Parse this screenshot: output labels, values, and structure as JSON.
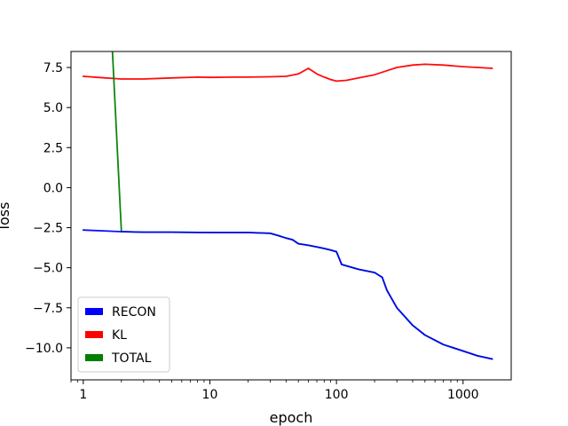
{
  "chart_data": {
    "type": "line",
    "title": "",
    "xlabel": "epoch",
    "ylabel": "loss",
    "xscale": "log",
    "xlim": [
      0.8,
      2400
    ],
    "ylim": [
      -12.0,
      8.5
    ],
    "xticks": [
      1,
      10,
      100,
      1000
    ],
    "xtick_labels": [
      "1",
      "10",
      "100",
      "1000"
    ],
    "yticks": [
      7.5,
      5.0,
      2.5,
      0.0,
      -2.5,
      -5.0,
      -7.5,
      -10.0
    ],
    "ytick_labels": [
      "7.5",
      "5.0",
      "2.5",
      "0.0",
      "−2.5",
      "−5.0",
      "−7.5",
      "−10.0"
    ],
    "grid": false,
    "legend_position": "lower-left",
    "legend": [
      {
        "label": "RECON",
        "color": "#0000ff"
      },
      {
        "label": "KL",
        "color": "#ff0000"
      },
      {
        "label": "TOTAL",
        "color": "#008000"
      }
    ],
    "series": [
      {
        "name": "KL",
        "color": "#ff0000",
        "x": [
          1,
          1.5,
          2,
          3,
          5,
          8,
          10,
          15,
          20,
          30,
          40,
          50,
          60,
          70,
          80,
          90,
          100,
          120,
          150,
          200,
          250,
          300,
          400,
          500,
          700,
          1000,
          1300,
          1700
        ],
        "values": [
          6.95,
          6.85,
          6.78,
          6.78,
          6.85,
          6.9,
          6.88,
          6.9,
          6.9,
          6.92,
          6.95,
          7.1,
          7.45,
          7.1,
          6.9,
          6.75,
          6.65,
          6.7,
          6.85,
          7.05,
          7.3,
          7.5,
          7.65,
          7.7,
          7.65,
          7.55,
          7.5,
          7.45
        ]
      },
      {
        "name": "TOTAL",
        "color": "#008000",
        "x": [
          1.7,
          2,
          3,
          5,
          10,
          20,
          30,
          35,
          40,
          45,
          50,
          60,
          70,
          80,
          90,
          100,
          110,
          150,
          200,
          230,
          250,
          300,
          400,
          500,
          700,
          1000,
          1300,
          1700
        ],
        "values": [
          8.5,
          -2.75,
          -2.78,
          -2.78,
          -2.8,
          -2.8,
          -2.85,
          -3.0,
          -3.15,
          -3.25,
          -3.5,
          -3.6,
          -3.7,
          -3.8,
          -3.9,
          -4.0,
          -4.8,
          -5.1,
          -5.3,
          -5.6,
          -6.4,
          -7.5,
          -8.6,
          -9.2,
          -9.8,
          -10.2,
          -10.5,
          -10.7
        ]
      },
      {
        "name": "RECON",
        "color": "#0000ff",
        "x": [
          1,
          2,
          3,
          5,
          10,
          20,
          30,
          35,
          40,
          45,
          50,
          60,
          70,
          80,
          90,
          100,
          110,
          150,
          200,
          230,
          250,
          300,
          400,
          500,
          700,
          1000,
          1300,
          1700
        ],
        "values": [
          -2.65,
          -2.75,
          -2.78,
          -2.78,
          -2.8,
          -2.8,
          -2.85,
          -3.0,
          -3.15,
          -3.25,
          -3.5,
          -3.6,
          -3.7,
          -3.8,
          -3.9,
          -4.0,
          -4.8,
          -5.1,
          -5.3,
          -5.6,
          -6.4,
          -7.5,
          -8.6,
          -9.2,
          -9.8,
          -10.2,
          -10.5,
          -10.7
        ]
      }
    ],
    "annotations": []
  }
}
